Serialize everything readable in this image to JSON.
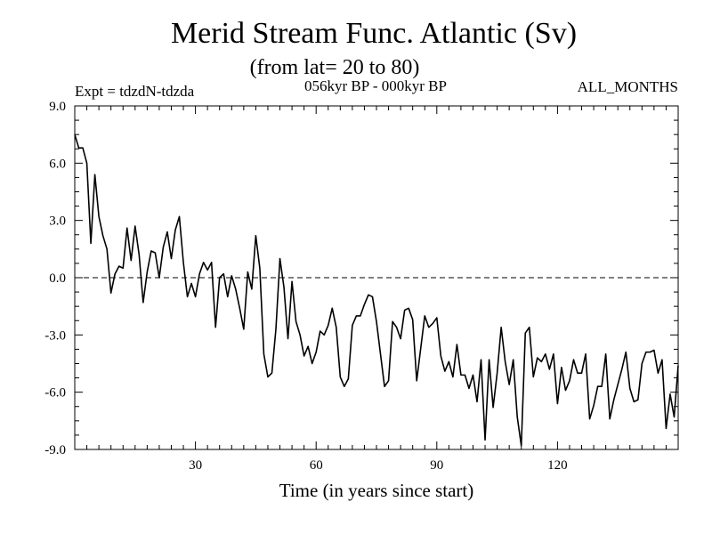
{
  "chart_data": {
    "type": "line",
    "title": "Merid Stream Func. Atlantic (Sv)",
    "subtitle": "(from lat= 20 to 80)",
    "left_note": "Expt = tdzdN-tdzda",
    "center_note": "056kyr BP - 000kyr BP",
    "right_note": "ALL_MONTHS",
    "xlabel": "Time (in years since start)",
    "ylabel": "",
    "xlim": [
      0,
      150
    ],
    "ylim": [
      -9,
      9
    ],
    "xticks": [
      30,
      60,
      90,
      120
    ],
    "xtick_labels": [
      "30",
      "60",
      "90",
      "120"
    ],
    "yticks": [
      9,
      6,
      3,
      0,
      -3,
      -6,
      -9
    ],
    "ytick_labels": [
      "9.0",
      "6.0",
      "3.0",
      "0.0",
      "-3.0",
      "-6.0",
      "-9.0"
    ],
    "zero_line": "dashed",
    "grid": false,
    "x": [
      0,
      1,
      2,
      3,
      4,
      5,
      6,
      7,
      8,
      9,
      10,
      11,
      12,
      13,
      14,
      15,
      16,
      17,
      18,
      19,
      20,
      21,
      22,
      23,
      24,
      25,
      26,
      27,
      28,
      29,
      30,
      31,
      32,
      33,
      34,
      35,
      36,
      37,
      38,
      39,
      40,
      41,
      42,
      43,
      44,
      45,
      46,
      47,
      48,
      49,
      50,
      51,
      52,
      53,
      54,
      55,
      56,
      57,
      58,
      59,
      60,
      61,
      62,
      63,
      64,
      65,
      66,
      67,
      68,
      69,
      70,
      71,
      72,
      73,
      74,
      75,
      76,
      77,
      78,
      79,
      80,
      81,
      82,
      83,
      84,
      85,
      86,
      87,
      88,
      89,
      90,
      91,
      92,
      93,
      94,
      95,
      96,
      97,
      98,
      99,
      100,
      101,
      102,
      103,
      104,
      105,
      106,
      107,
      108,
      109,
      110,
      111,
      112,
      113,
      114,
      115,
      116,
      117,
      118,
      119,
      120,
      121,
      122,
      123,
      124,
      125,
      126,
      127,
      128,
      129,
      130,
      131,
      132,
      133,
      134,
      135,
      136,
      137,
      138,
      139,
      140,
      141,
      142,
      143,
      144,
      145,
      146,
      147,
      148,
      149,
      150
    ],
    "values": [
      7.5,
      6.8,
      6.8,
      6.0,
      1.8,
      5.4,
      3.2,
      2.2,
      1.5,
      -0.8,
      0.2,
      0.6,
      0.5,
      2.6,
      0.9,
      2.7,
      1.2,
      -1.3,
      0.3,
      1.4,
      1.3,
      0.0,
      1.6,
      2.4,
      1.0,
      2.5,
      3.2,
      0.8,
      -1.0,
      -0.3,
      -1.0,
      0.2,
      0.8,
      0.4,
      0.8,
      -2.6,
      0.0,
      0.2,
      -1.0,
      0.1,
      -0.6,
      -1.6,
      -2.7,
      0.3,
      -0.6,
      2.2,
      0.5,
      -4.0,
      -5.2,
      -5.0,
      -2.7,
      1.0,
      -0.5,
      -3.2,
      -0.2,
      -2.3,
      -3.0,
      -4.1,
      -3.6,
      -4.5,
      -3.9,
      -2.8,
      -3.0,
      -2.5,
      -1.6,
      -2.6,
      -5.2,
      -5.7,
      -5.3,
      -2.5,
      -2.0,
      -2.0,
      -1.4,
      -0.9,
      -1.0,
      -2.3,
      -4.0,
      -5.7,
      -5.4,
      -2.3,
      -2.6,
      -3.2,
      -1.7,
      -1.6,
      -2.2,
      -5.4,
      -3.7,
      -2.0,
      -2.6,
      -2.4,
      -2.1,
      -4.1,
      -4.9,
      -4.4,
      -5.2,
      -3.5,
      -5.1,
      -5.1,
      -5.8,
      -5.1,
      -6.5,
      -4.3,
      -8.5,
      -4.3,
      -6.8,
      -5.0,
      -2.6,
      -4.4,
      -5.6,
      -4.3,
      -7.3,
      -8.8,
      -2.9,
      -2.6,
      -5.2,
      -4.2,
      -4.4,
      -4.0,
      -4.8,
      -4.0,
      -6.6,
      -4.7,
      -5.9,
      -5.4,
      -4.3,
      -5.0,
      -5.0,
      -4.0,
      -7.4,
      -6.7,
      -5.7,
      -5.7,
      -4.0,
      -7.4,
      -6.4,
      -5.6,
      -4.8,
      -3.9,
      -5.8,
      -6.5,
      -6.4,
      -4.5,
      -3.9,
      -3.9,
      -3.8,
      -5.0,
      -4.3,
      -7.9,
      -6.1,
      -7.3,
      -4.6
    ]
  }
}
